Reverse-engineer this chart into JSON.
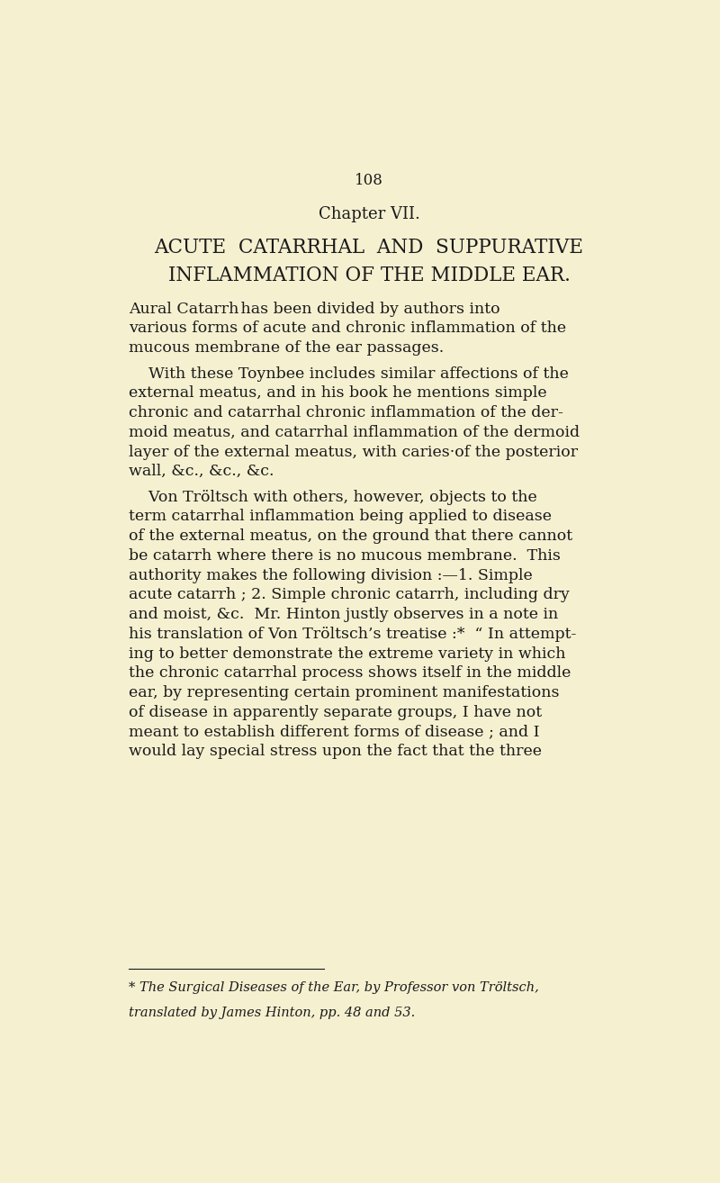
{
  "background_color": "#f5f0d0",
  "page_number": "108",
  "chapter_heading": "Chapter VII.",
  "title_line1": "ACUTE  CATARRHAL  AND  SUPPURATIVE",
  "title_line2": "INFLAMMATION OF THE MIDDLE EAR.",
  "text_color": "#1a1a1a",
  "figsize": [
    8.0,
    13.14
  ],
  "dpi": 100
}
